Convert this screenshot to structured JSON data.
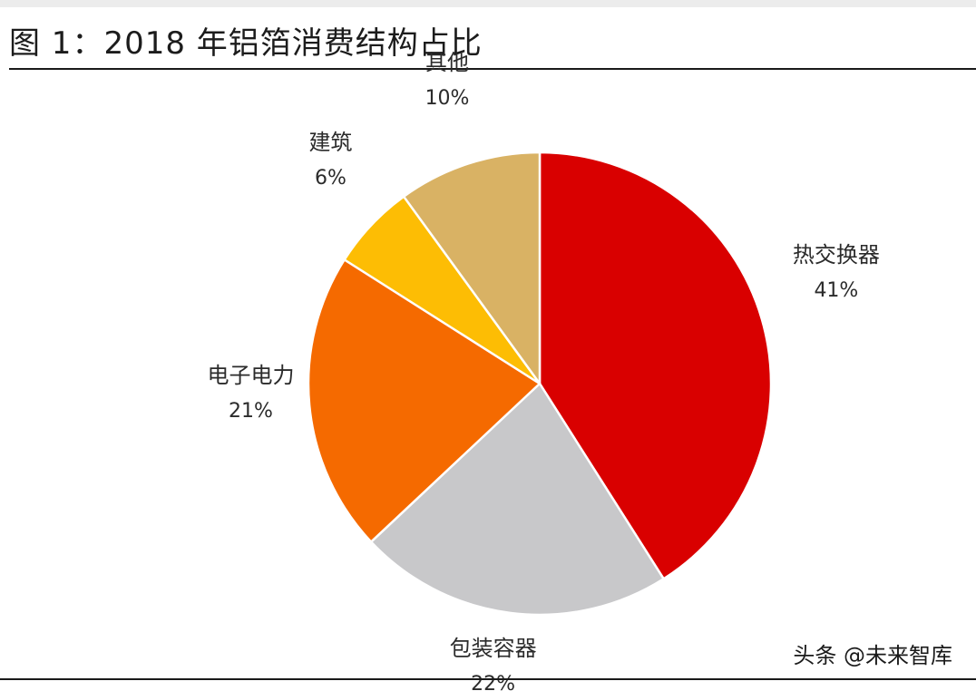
{
  "figure_title": "图 1：2018 年铝箔消费结构占比",
  "watermark": "头条 @未来智库",
  "chart_data": {
    "type": "pie",
    "title": "图 1：2018 年铝箔消费结构占比",
    "start_angle_deg": 0,
    "direction": "clockwise",
    "slices": [
      {
        "label": "热交换器",
        "value": 41,
        "value_label": "41%",
        "color": "#d90000"
      },
      {
        "label": "包装容器",
        "value": 22,
        "value_label": "22%",
        "color": "#c8c8ca"
      },
      {
        "label": "电子电力",
        "value": 21,
        "value_label": "21%",
        "color": "#f56a00"
      },
      {
        "label": "建筑",
        "value": 6,
        "value_label": "6%",
        "color": "#fdbd04"
      },
      {
        "label": "其他",
        "value": 10,
        "value_label": "10%",
        "color": "#d9b264"
      }
    ],
    "legend": "none",
    "labels": "outside"
  }
}
